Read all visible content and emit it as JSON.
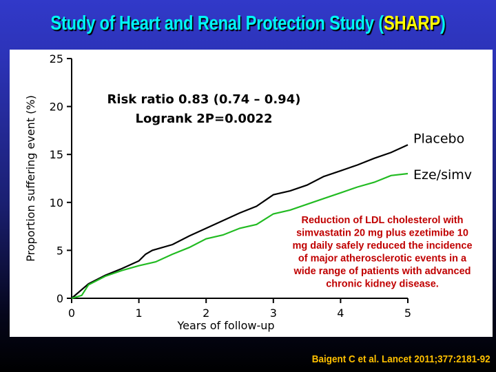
{
  "slide": {
    "title_prefix": "Study of Heart and Renal Protection Study (",
    "title_highlight": "SHARP",
    "title_suffix": ")",
    "citation": "Baigent C et al. Lancet 2011;377:2181-92",
    "colors": {
      "title": "#00f5f5",
      "highlight": "#ffff00",
      "citation": "#ffc000",
      "annotation": "#c00000"
    }
  },
  "chart_data": {
    "type": "line",
    "xlabel": "Years of follow-up",
    "ylabel": "Proportion suffering event (%)",
    "xlim": [
      0,
      5
    ],
    "ylim": [
      0,
      25
    ],
    "xticks": [
      "0",
      "1",
      "2",
      "3",
      "4",
      "5"
    ],
    "yticks": [
      "0",
      "5",
      "10",
      "15",
      "20",
      "25"
    ],
    "grid": false,
    "stats": [
      "Risk ratio 0.83 (0.74 – 0.94)",
      "Logrank 2P=0.0022"
    ],
    "annotation": [
      "Reduction of LDL cholesterol with",
      "simvastatin 20 mg plus ezetimibe 10",
      "mg daily safely reduced the incidence",
      "of major atherosclerotic events in a",
      "wide range of patients with advanced",
      "chronic kidney disease."
    ],
    "series": [
      {
        "name": "Placebo",
        "color": "#000000",
        "x": [
          0,
          0.25,
          0.5,
          0.75,
          1.0,
          1.1,
          1.2,
          1.5,
          1.75,
          2.0,
          2.25,
          2.5,
          2.75,
          3.0,
          3.25,
          3.5,
          3.75,
          4.0,
          4.25,
          4.5,
          4.75,
          5.0
        ],
        "y": [
          0,
          1.5,
          2.4,
          3.1,
          3.9,
          4.6,
          5.0,
          5.6,
          6.5,
          7.3,
          8.1,
          8.9,
          9.6,
          10.8,
          11.2,
          11.8,
          12.7,
          13.3,
          13.9,
          14.6,
          15.2,
          16.0
        ]
      },
      {
        "name": "Eze/simv",
        "color": "#22bb22",
        "x": [
          0,
          0.15,
          0.25,
          0.5,
          0.75,
          1.0,
          1.25,
          1.5,
          1.75,
          2.0,
          2.25,
          2.5,
          2.75,
          3.0,
          3.25,
          3.5,
          3.75,
          4.0,
          4.25,
          4.5,
          4.75,
          5.0
        ],
        "y": [
          0,
          0.3,
          1.4,
          2.3,
          2.9,
          3.4,
          3.8,
          4.6,
          5.3,
          6.2,
          6.6,
          7.3,
          7.7,
          8.8,
          9.2,
          9.8,
          10.4,
          11.0,
          11.6,
          12.1,
          12.8,
          13.0
        ]
      }
    ]
  }
}
